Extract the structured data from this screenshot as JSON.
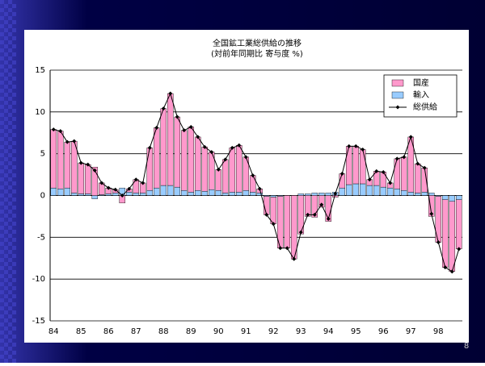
{
  "chart_data": {
    "type": "stacked-bar-line",
    "title": "全国鉱工業総供給の推移",
    "subtitle": "(対前年同期比 寄与度 %)",
    "page_number": "8",
    "categories": [
      "84",
      null,
      null,
      null,
      "85",
      null,
      null,
      null,
      "86",
      null,
      null,
      null,
      "87",
      null,
      null,
      null,
      "88",
      null,
      null,
      null,
      "89",
      null,
      null,
      null,
      "90",
      null,
      null,
      null,
      "91",
      null,
      null,
      null,
      "92",
      null,
      null,
      null,
      "93",
      null,
      null,
      null,
      "94",
      null,
      null,
      null,
      "95",
      null,
      null,
      null,
      "96",
      null,
      null,
      null,
      "97",
      null,
      null,
      null,
      "98",
      null,
      null,
      null
    ],
    "series": [
      {
        "name": "国産",
        "color": "#ff99cc",
        "kind": "bar",
        "values": [
          7.0,
          6.9,
          5.5,
          6.2,
          3.7,
          3.5,
          3.4,
          1.4,
          0.7,
          0.4,
          -0.9,
          0.4,
          1.6,
          1.2,
          5.1,
          7.2,
          9.2,
          11.0,
          8.4,
          7.2,
          7.8,
          6.4,
          5.3,
          4.5,
          2.5,
          4.0,
          5.3,
          5.6,
          4.0,
          2.0,
          0.5,
          -2.2,
          -3.2,
          -6.2,
          -6.3,
          -7.6,
          -4.6,
          -2.5,
          -2.6,
          -1.4,
          -3.1,
          -0.2,
          1.7,
          4.6,
          4.5,
          4.1,
          0.7,
          1.7,
          1.8,
          0.6,
          3.6,
          4.0,
          6.6,
          3.5,
          2.9,
          -2.5,
          -5.5,
          -8.1,
          -8.4,
          -5.9
        ]
      },
      {
        "name": "輸入",
        "color": "#99ccff",
        "kind": "bar",
        "values": [
          0.9,
          0.8,
          0.9,
          0.3,
          0.2,
          0.2,
          -0.4,
          0.1,
          0.2,
          0.3,
          0.9,
          0.4,
          0.3,
          0.3,
          0.6,
          0.9,
          1.2,
          1.2,
          1.0,
          0.6,
          0.4,
          0.6,
          0.5,
          0.7,
          0.6,
          0.3,
          0.4,
          0.4,
          0.6,
          0.4,
          0.3,
          -0.1,
          -0.2,
          -0.1,
          0.0,
          0.0,
          0.2,
          0.2,
          0.3,
          0.3,
          0.3,
          0.4,
          0.9,
          1.3,
          1.4,
          1.4,
          1.2,
          1.2,
          1.0,
          0.9,
          0.8,
          0.6,
          0.4,
          0.3,
          0.4,
          0.3,
          -0.1,
          -0.5,
          -0.7,
          -0.5
        ]
      },
      {
        "name": "総供給",
        "color": "#000000",
        "kind": "line",
        "values": [
          7.9,
          7.7,
          6.4,
          6.5,
          3.9,
          3.7,
          3.0,
          1.5,
          0.9,
          0.7,
          0.0,
          0.8,
          1.9,
          1.5,
          5.7,
          8.1,
          10.4,
          12.2,
          9.4,
          7.8,
          8.2,
          7.0,
          5.8,
          5.2,
          3.1,
          4.3,
          5.7,
          6.0,
          4.6,
          2.4,
          0.8,
          -2.3,
          -3.4,
          -6.3,
          -6.3,
          -7.6,
          -4.4,
          -2.3,
          -2.3,
          -1.1,
          -2.8,
          0.2,
          2.6,
          5.9,
          5.9,
          5.5,
          1.9,
          2.9,
          2.8,
          1.5,
          4.4,
          4.6,
          7.0,
          3.8,
          3.3,
          -2.2,
          -5.6,
          -8.6,
          -9.1,
          -6.4
        ]
      }
    ],
    "ylim": [
      -15,
      15
    ],
    "yticks": [
      15,
      10,
      5,
      0,
      -5,
      -10,
      -15
    ],
    "grid": true,
    "legend": "top-right"
  }
}
